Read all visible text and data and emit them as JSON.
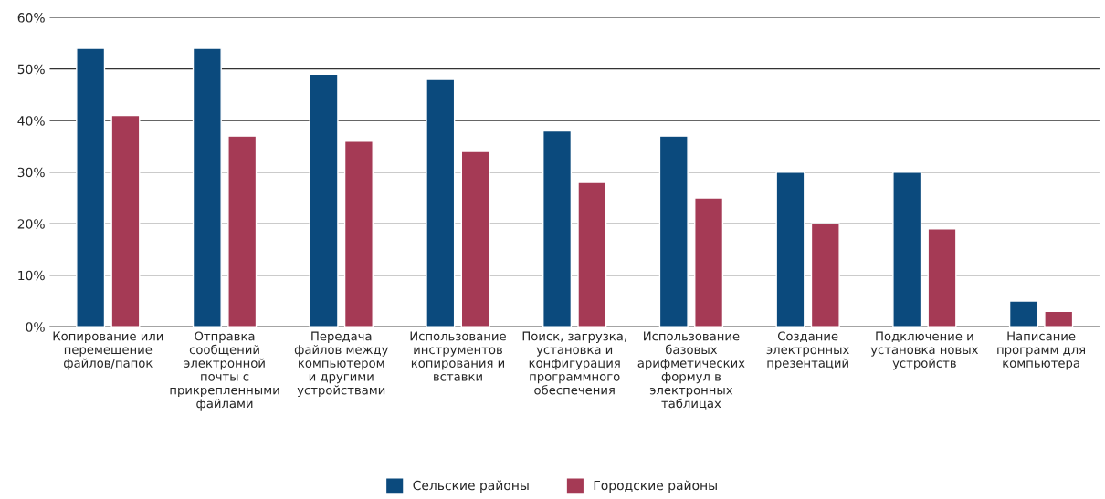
{
  "chart_data": {
    "type": "bar",
    "categories": [
      "Копирование или\nперемещение\nфайлов/папок",
      "Отправка\nсообщений\nэлектронной\nпочты с\nприкрепленными\nфайлами",
      "Передача\nфайлов между\nкомпьютером\nи другими\nустройствами",
      "Использование\nинструментов\nкопирования и\nвставки",
      "Поиск, загрузка,\nустановка и\nконфигурация\nпрограммного\nобеспечения",
      "Использование\nбазовых\nарифметических\nформул в\nэлектронных\nтаблицах",
      "Создание\nэлектронных\nпрезентаций",
      "Подключение и\nустановка новых\nустройств",
      "Написание\nпрограмм для\nкомпьютера"
    ],
    "series": [
      {
        "name": "Сельские районы",
        "color": "#0b4a7d",
        "values": [
          54,
          54,
          49,
          48,
          38,
          37,
          30,
          30,
          5
        ]
      },
      {
        "name": "Городские районы",
        "color": "#a53a55",
        "values": [
          41,
          37,
          36,
          34,
          28,
          25,
          20,
          19,
          3
        ]
      }
    ],
    "ylim": [
      0,
      60
    ],
    "yticks": [
      {
        "value": 0,
        "label": "0%"
      },
      {
        "value": 10,
        "label": "10%"
      },
      {
        "value": 20,
        "label": "20%"
      },
      {
        "value": 30,
        "label": "30%"
      },
      {
        "value": 40,
        "label": "40%"
      },
      {
        "value": 50,
        "label": "50%"
      },
      {
        "value": 60,
        "label": "60%"
      }
    ],
    "grid": "y",
    "legend": "bottom"
  }
}
